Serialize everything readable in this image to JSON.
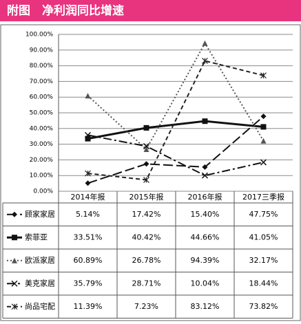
{
  "chart_data": {
    "type": "line",
    "title": "附图　净利润同比增速",
    "categories": [
      "2014年报",
      "2015年报",
      "2016年报",
      "2017三季报"
    ],
    "ylim": [
      0,
      100
    ],
    "yticks": [
      {
        "value": 0,
        "label": "0.00%"
      },
      {
        "value": 10,
        "label": "10.00%"
      },
      {
        "value": 20,
        "label": "20.00%"
      },
      {
        "value": 30,
        "label": "30.00%"
      },
      {
        "value": 40,
        "label": "40.00%"
      },
      {
        "value": 50,
        "label": "50.00%"
      },
      {
        "value": 60,
        "label": "60.00%"
      },
      {
        "value": 70,
        "label": "70.00%"
      },
      {
        "value": 80,
        "label": "80.00%"
      },
      {
        "value": 90,
        "label": "90.00%"
      },
      {
        "value": 100,
        "label": "100.00%"
      }
    ],
    "grid": true,
    "series": [
      {
        "name": "顾家家居",
        "color": "#111111",
        "dash": "14 5",
        "marker": "diamond",
        "values": [
          5.14,
          17.42,
          15.4,
          47.75
        ],
        "value_labels": [
          "5.14%",
          "17.42%",
          "15.40%",
          "47.75%"
        ]
      },
      {
        "name": "索菲亚",
        "color": "#111111",
        "dash": "none",
        "marker": "square",
        "values": [
          33.51,
          40.42,
          44.66,
          41.05
        ],
        "value_labels": [
          "33.51%",
          "40.42%",
          "44.66%",
          "41.05%"
        ]
      },
      {
        "name": "欧派家居",
        "color": "#555555",
        "dash": "2 3",
        "marker": "triangle",
        "values": [
          60.89,
          26.78,
          94.39,
          32.17
        ],
        "value_labels": [
          "60.89%",
          "26.78%",
          "94.39%",
          "32.17%"
        ]
      },
      {
        "name": "美克家居",
        "color": "#111111",
        "dash": "12 4 3 4",
        "marker": "x",
        "values": [
          35.79,
          28.71,
          10.04,
          18.44
        ],
        "value_labels": [
          "35.79%",
          "28.71%",
          "10.04%",
          "18.44%"
        ]
      },
      {
        "name": "尚品宅配",
        "color": "#222222",
        "dash": "6 4",
        "marker": "star",
        "values": [
          11.39,
          7.23,
          83.12,
          73.82
        ],
        "value_labels": [
          "11.39%",
          "7.23%",
          "83.12%",
          "73.82%"
        ]
      }
    ]
  }
}
